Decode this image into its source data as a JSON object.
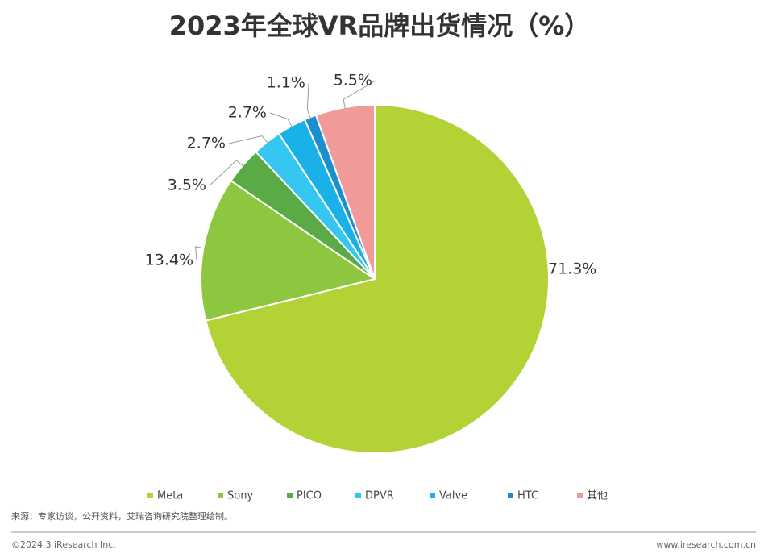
{
  "chart_data": {
    "type": "pie",
    "title": "2023年全球VR品牌出货情况（%）",
    "categories": [
      "Meta",
      "Sony",
      "PICO",
      "DPVR",
      "Valve",
      "HTC",
      "其他"
    ],
    "values": [
      71.3,
      13.4,
      3.5,
      2.7,
      2.7,
      1.1,
      5.5
    ],
    "value_labels": [
      "71.3%",
      "13.4%",
      "3.5%",
      "2.7%",
      "2.7%",
      "1.1%",
      "5.5%"
    ],
    "colors": [
      "#b3d235",
      "#8dc63f",
      "#5aab46",
      "#35c7f0",
      "#1ab0e8",
      "#1a8fd0",
      "#f09a9a"
    ],
    "source": "来源：专家访谈，公开资料，艾瑞咨询研究院整理绘制。",
    "copyright": "©2024.3 iResearch Inc.",
    "website": "www.iresearch.com.cn"
  }
}
